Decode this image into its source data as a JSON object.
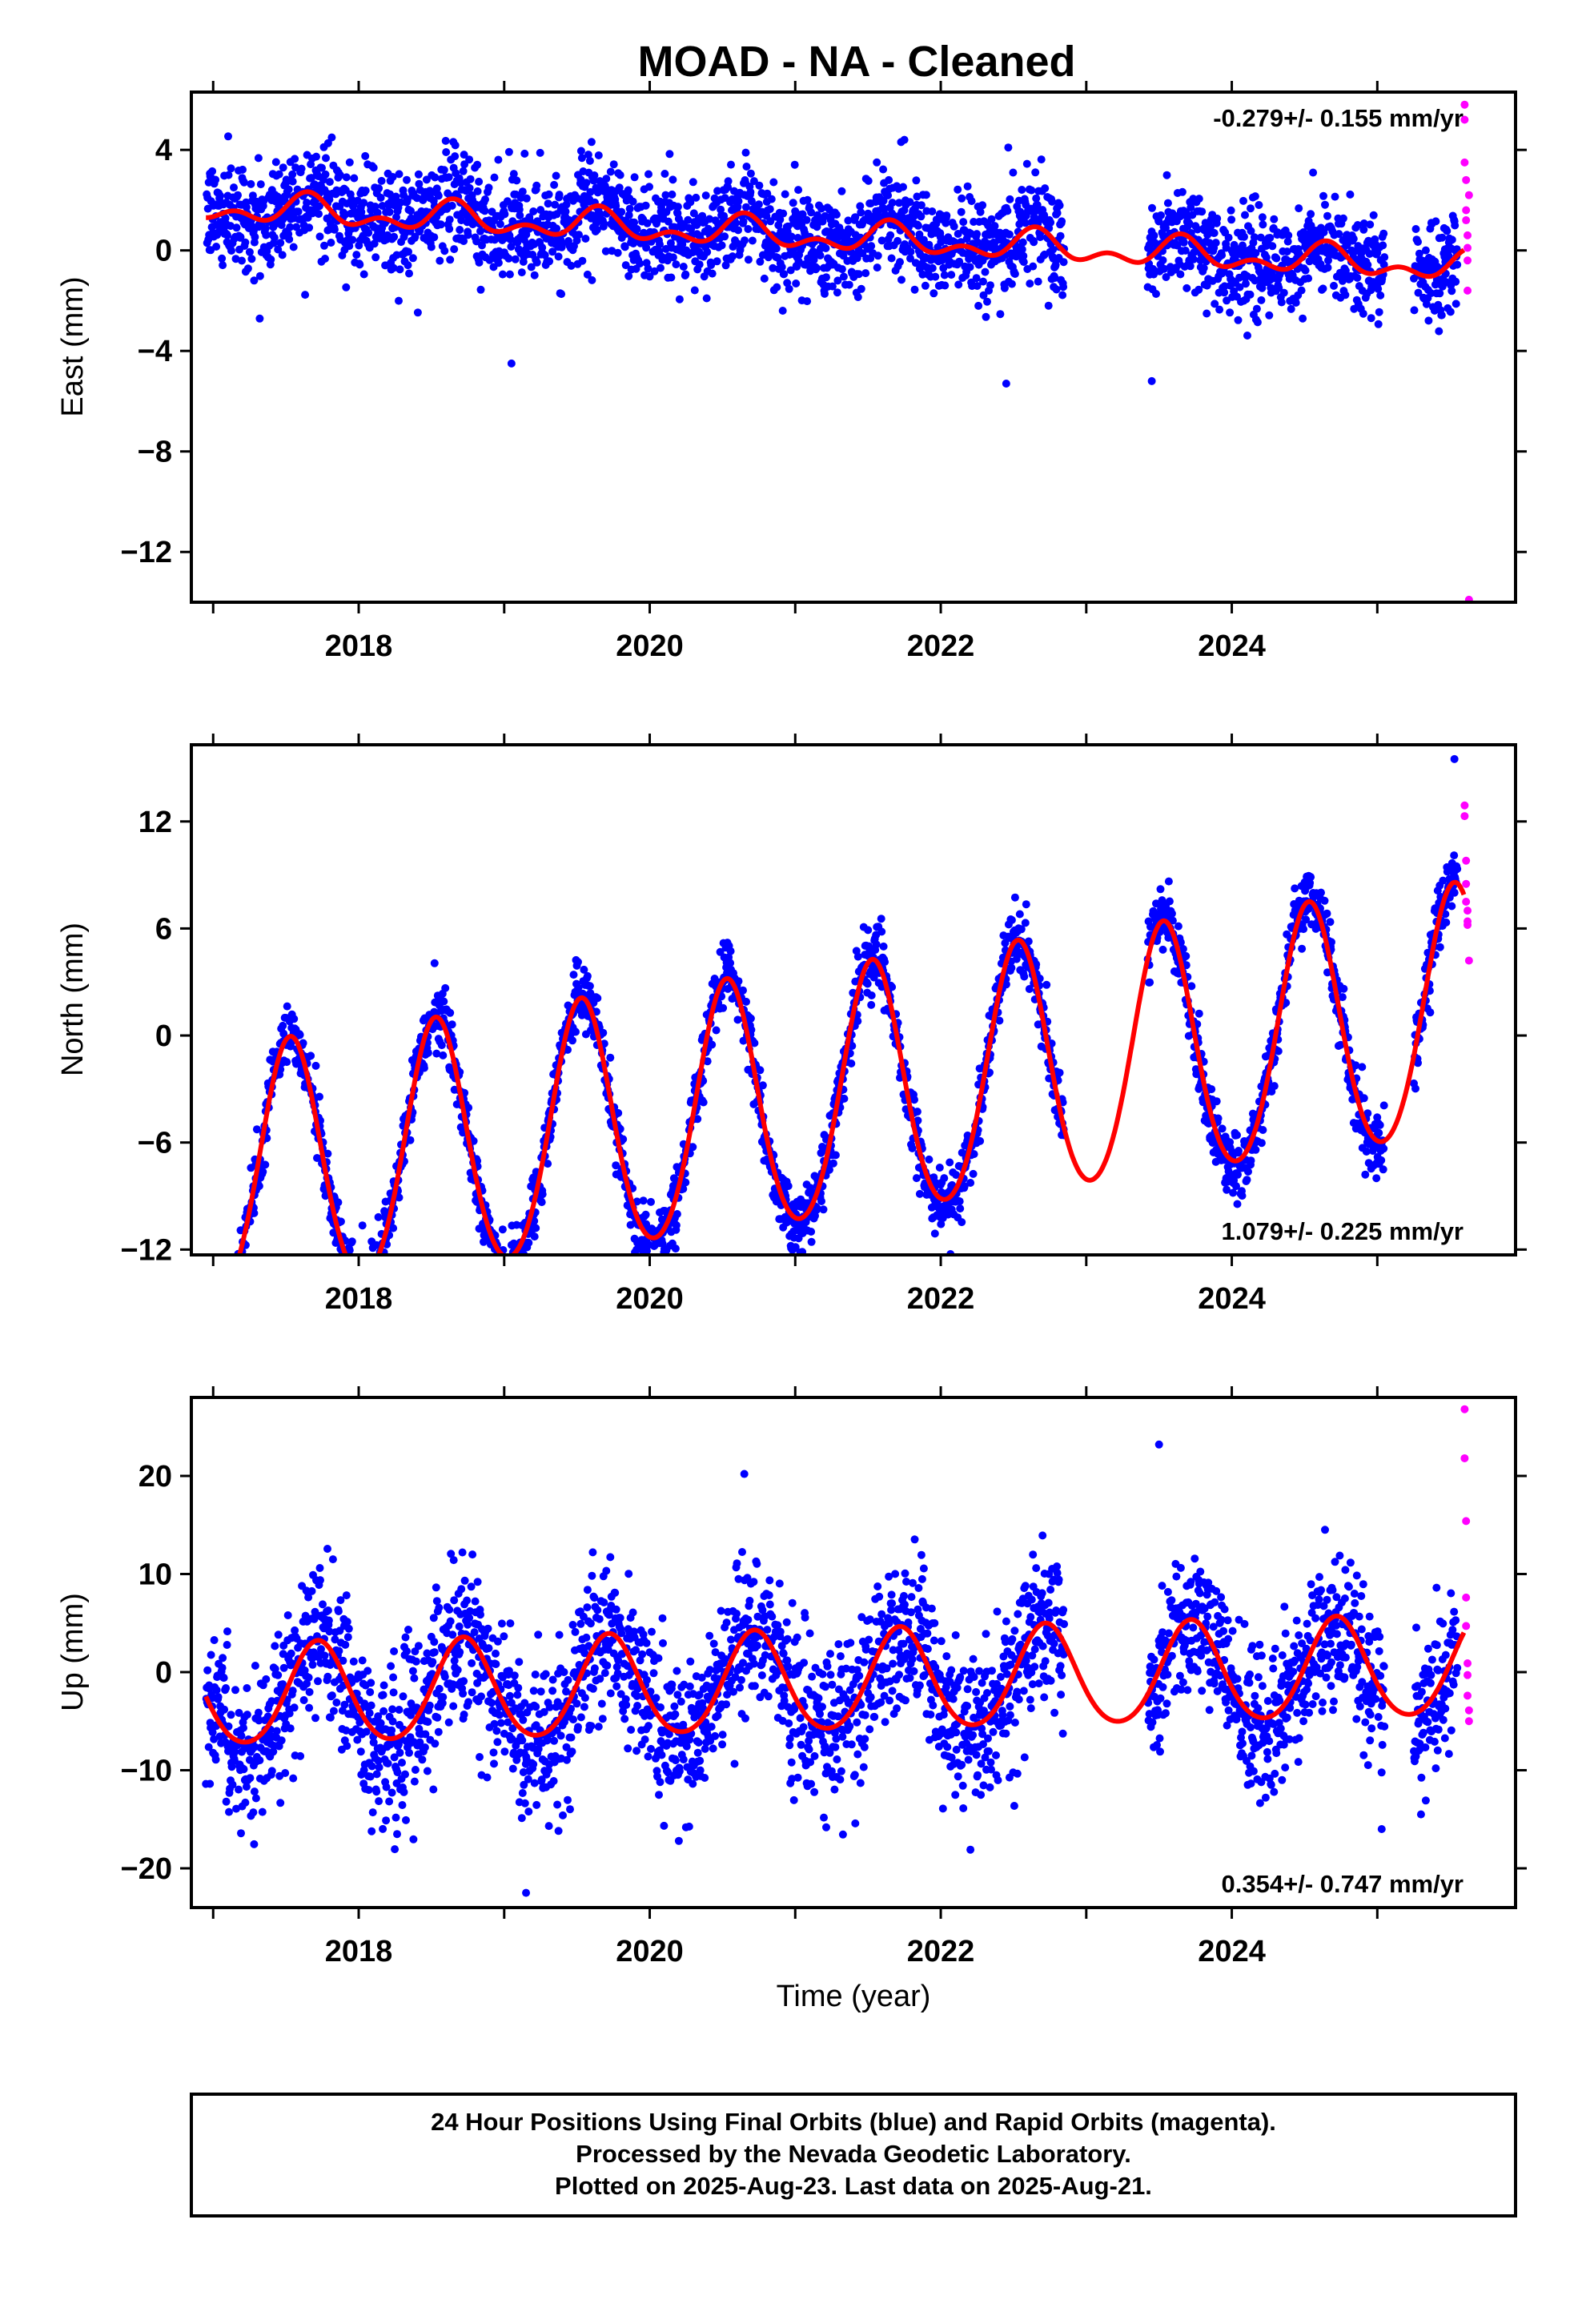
{
  "figure": {
    "title": "MOAD  - NA - Cleaned",
    "footer_lines": [
      "24 Hour Positions Using Final Orbits (blue) and Rapid Orbits (magenta).",
      "Processed by the Nevada Geodetic Laboratory.",
      "Plotted on 2025-Aug-23. Last data on 2025-Aug-21."
    ],
    "colors": {
      "final_orbits": "#0000ff",
      "rapid_orbits": "#ff00ff",
      "model_fit": "#ff0000",
      "frame": "#000000"
    }
  },
  "chart_data": [
    {
      "type": "scatter",
      "title": "MOAD  - NA - Cleaned",
      "xlabel": "",
      "ylabel": "East (mm)",
      "xlim": [
        2016.85,
        2025.95
      ],
      "ylim": [
        -14.0,
        6.3
      ],
      "xticks": [
        2018,
        2020,
        2022,
        2024
      ],
      "yticks": [
        4,
        0,
        -4,
        -8,
        -12
      ],
      "rate_label": "-0.279+/- 0.155 mm/yr",
      "rate_label_position": "top-right",
      "series": [
        {
          "name": "Final Orbits (blue)",
          "model": {
            "center": 0.7,
            "trend_mm_per_yr": -0.279,
            "annual_amp": 0.5,
            "annual_phase_peak": 0.65,
            "semiannual_amp": 0.3,
            "scatter_std": 1.0
          },
          "data_range": [
            2016.95,
            2025.55
          ],
          "gaps": [
            [
              2022.85,
              2023.42
            ],
            [
              2025.05,
              2025.25
            ]
          ],
          "outliers": [
            {
              "x": 2019.05,
              "y": -4.5
            },
            {
              "x": 2021.75,
              "y": 4.4
            },
            {
              "x": 2022.45,
              "y": -5.3
            },
            {
              "x": 2023.45,
              "y": -5.2
            }
          ]
        },
        {
          "name": "Rapid Orbits (magenta)",
          "x": [
            2025.6,
            2025.6,
            2025.6,
            2025.61,
            2025.61,
            2025.61,
            2025.62,
            2025.62,
            2025.62,
            2025.62,
            2025.63,
            2025.63
          ],
          "y": [
            5.8,
            5.2,
            3.5,
            2.8,
            1.6,
            1.2,
            0.6,
            0.1,
            -0.4,
            -1.6,
            -13.9,
            2.2
          ]
        },
        {
          "name": "Model fit",
          "line": true,
          "model": {
            "center": 0.6,
            "trend_mm_per_yr": -0.279,
            "annual_amp": 0.45,
            "annual_phase_peak": 0.65,
            "semiannual_amp": 0.35
          },
          "x_range": [
            2016.95,
            2025.6
          ]
        }
      ]
    },
    {
      "type": "scatter",
      "title": "",
      "xlabel": "",
      "ylabel": "North (mm)",
      "xlim": [
        2016.85,
        2025.95
      ],
      "ylim": [
        -12.3,
        16.3
      ],
      "xticks": [
        2018,
        2020,
        2022,
        2024
      ],
      "yticks": [
        12,
        6,
        0,
        -6,
        -12
      ],
      "rate_label": "1.079+/- 0.225 mm/yr",
      "rate_label_position": "bottom-right",
      "series": [
        {
          "name": "Final Orbits (blue)",
          "model": {
            "center": -4.0,
            "trend_mm_per_yr": 1.079,
            "annual_amp": 7.3,
            "annual_phase_peak": 0.53,
            "semiannual_amp": 0.6,
            "scatter_std": 0.9
          },
          "data_range": [
            2016.95,
            2025.55
          ],
          "gaps": [
            [
              2022.85,
              2023.42
            ],
            [
              2025.05,
              2025.25
            ]
          ],
          "outliers": [
            {
              "x": 2025.53,
              "y": 15.5
            },
            {
              "x": 2023.85,
              "y": -5.8
            }
          ]
        },
        {
          "name": "Rapid Orbits (magenta)",
          "x": [
            2025.6,
            2025.6,
            2025.61,
            2025.61,
            2025.61,
            2025.62,
            2025.62,
            2025.62,
            2025.63
          ],
          "y": [
            12.9,
            12.3,
            9.8,
            8.5,
            7.5,
            7.0,
            6.4,
            6.2,
            4.2
          ]
        },
        {
          "name": "Model fit",
          "line": true,
          "model": {
            "center": -3.9,
            "trend_mm_per_yr": 1.079,
            "annual_amp": 7.0,
            "annual_phase_peak": 0.53,
            "semiannual_amp": 0.6
          },
          "x_range": [
            2016.95,
            2025.6
          ]
        }
      ]
    },
    {
      "type": "scatter",
      "title": "",
      "xlabel": "Time (year)",
      "ylabel": "Up (mm)",
      "xlim": [
        2016.85,
        2025.95
      ],
      "ylim": [
        -24.0,
        28.0
      ],
      "xticks": [
        2018,
        2020,
        2022,
        2024
      ],
      "yticks": [
        20,
        10,
        0,
        -10,
        -20
      ],
      "rate_label": "0.354+/- 0.747 mm/yr",
      "rate_label_position": "bottom-right",
      "series": [
        {
          "name": "Final Orbits (blue)",
          "model": {
            "center": -1.5,
            "trend_mm_per_yr": 0.354,
            "annual_amp": 5.3,
            "annual_phase_peak": 0.72,
            "semiannual_amp": 0.5,
            "scatter_std": 3.9
          },
          "data_range": [
            2016.95,
            2025.55
          ],
          "gaps": [
            [
              2022.85,
              2023.42
            ],
            [
              2025.05,
              2025.25
            ]
          ],
          "outliers": [
            {
              "x": 2020.65,
              "y": 20.2
            },
            {
              "x": 2023.5,
              "y": 23.2
            },
            {
              "x": 2019.15,
              "y": -22.5
            },
            {
              "x": 2025.03,
              "y": -16.0
            }
          ]
        },
        {
          "name": "Rapid Orbits (magenta)",
          "x": [
            2025.6,
            2025.6,
            2025.61,
            2025.61,
            2025.61,
            2025.62,
            2025.62,
            2025.62,
            2025.63,
            2025.63
          ],
          "y": [
            26.8,
            21.8,
            15.4,
            7.6,
            4.7,
            0.9,
            -0.3,
            -2.4,
            -3.9,
            -5.0
          ]
        },
        {
          "name": "Model fit",
          "line": true,
          "model": {
            "center": -1.2,
            "trend_mm_per_yr": 0.354,
            "annual_amp": 5.1,
            "annual_phase_peak": 0.72,
            "semiannual_amp": 0.5
          },
          "x_range": [
            2016.95,
            2025.6
          ]
        }
      ]
    }
  ]
}
